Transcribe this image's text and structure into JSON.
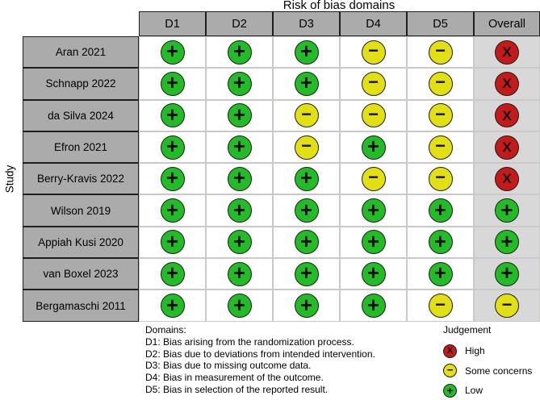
{
  "title": "Risk of bias domains",
  "axis_label": "Study",
  "columns": [
    "D1",
    "D2",
    "D3",
    "D4",
    "D5",
    "Overall"
  ],
  "studies": [
    {
      "name": "Aran 2021",
      "ratings": [
        "low",
        "low",
        "low",
        "some",
        "some",
        "high"
      ]
    },
    {
      "name": "Schnapp 2022",
      "ratings": [
        "low",
        "low",
        "low",
        "some",
        "some",
        "high"
      ]
    },
    {
      "name": "da Silva 2024",
      "ratings": [
        "low",
        "low",
        "some",
        "some",
        "some",
        "high"
      ]
    },
    {
      "name": "Efron 2021",
      "ratings": [
        "low",
        "low",
        "some",
        "low",
        "some",
        "high"
      ]
    },
    {
      "name": "Berry-Kravis 2022",
      "ratings": [
        "low",
        "low",
        "low",
        "some",
        "some",
        "high"
      ]
    },
    {
      "name": "Wilson 2019",
      "ratings": [
        "low",
        "low",
        "low",
        "low",
        "low",
        "low"
      ]
    },
    {
      "name": "Appiah Kusi 2020",
      "ratings": [
        "low",
        "low",
        "low",
        "low",
        "low",
        "low"
      ]
    },
    {
      "name": "van Boxel 2023",
      "ratings": [
        "low",
        "low",
        "low",
        "low",
        "low",
        "low"
      ]
    },
    {
      "name": "Bergamaschi 2011",
      "ratings": [
        "low",
        "low",
        "low",
        "low",
        "some",
        "some"
      ]
    }
  ],
  "judgements": {
    "high": {
      "label": "High",
      "symbol": "X",
      "color": "#c41a1a",
      "icon": "x-icon"
    },
    "some": {
      "label": "Some concerns",
      "symbol": "−",
      "color": "#e2df12",
      "icon": "minus-icon"
    },
    "low": {
      "label": "Low",
      "symbol": "+",
      "color": "#21bc26",
      "icon": "plus-icon"
    }
  },
  "domains_legend": {
    "heading": "Domains:",
    "items": [
      "D1: Bias arising from the randomization process.",
      "D2: Bias due to deviations from intended intervention.",
      "D3: Bias due to missing outcome data.",
      "D4: Bias in measurement of the outcome.",
      "D5: Bias in selection of the reported result."
    ]
  },
  "judgement_legend": {
    "heading": "Judgement",
    "items": [
      "high",
      "some",
      "low"
    ]
  },
  "colors": {
    "header_bg": "#ababab",
    "overall_column_bg": "#d8d8d8",
    "grid_border": "#c9c9c9",
    "cell_border": "#1f1f1f",
    "symbol": "#101010"
  },
  "chart_data": {
    "type": "table",
    "title": "Risk of bias domains",
    "xlabel": "Risk of bias domains",
    "ylabel": "Study",
    "categories": [
      "D1",
      "D2",
      "D3",
      "D4",
      "D5",
      "Overall"
    ],
    "series": [
      {
        "name": "Aran 2021",
        "values": [
          "low",
          "low",
          "low",
          "some",
          "some",
          "high"
        ]
      },
      {
        "name": "Schnapp 2022",
        "values": [
          "low",
          "low",
          "low",
          "some",
          "some",
          "high"
        ]
      },
      {
        "name": "da Silva 2024",
        "values": [
          "low",
          "low",
          "some",
          "some",
          "some",
          "high"
        ]
      },
      {
        "name": "Efron 2021",
        "values": [
          "low",
          "low",
          "some",
          "low",
          "some",
          "high"
        ]
      },
      {
        "name": "Berry-Kravis 2022",
        "values": [
          "low",
          "low",
          "low",
          "some",
          "some",
          "high"
        ]
      },
      {
        "name": "Wilson 2019",
        "values": [
          "low",
          "low",
          "low",
          "low",
          "low",
          "low"
        ]
      },
      {
        "name": "Appiah Kusi 2020",
        "values": [
          "low",
          "low",
          "low",
          "low",
          "low",
          "low"
        ]
      },
      {
        "name": "van Boxel 2023",
        "values": [
          "low",
          "low",
          "low",
          "low",
          "low",
          "low"
        ]
      },
      {
        "name": "Bergamaschi 2011",
        "values": [
          "low",
          "low",
          "low",
          "low",
          "some",
          "some"
        ]
      }
    ],
    "legend": {
      "high": "High",
      "some": "Some concerns",
      "low": "Low"
    },
    "legend_position": "bottom-right"
  }
}
